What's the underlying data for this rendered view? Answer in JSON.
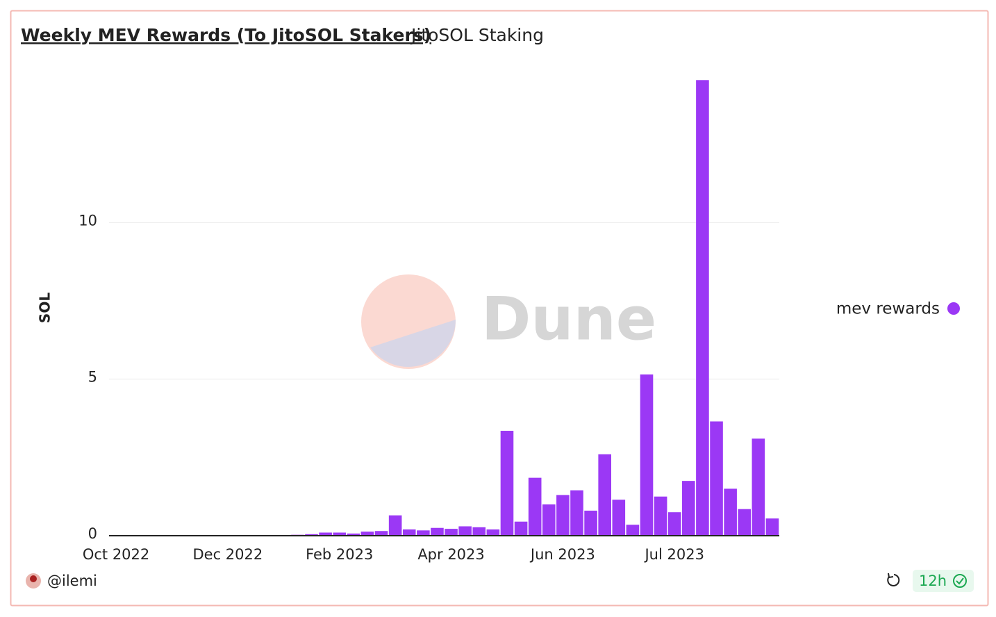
{
  "chart_data": {
    "type": "bar",
    "title": "Weekly MEV Rewards (To JitoSOL Stakers)",
    "subtitle": "JitoSOL Staking",
    "y_label": "SOL",
    "watermark": "Dune",
    "categories": [
      "Oct 2022",
      null,
      null,
      null,
      null,
      null,
      null,
      null,
      "Dec 2022",
      null,
      null,
      null,
      null,
      null,
      null,
      null,
      "Feb 2023",
      null,
      null,
      null,
      null,
      null,
      null,
      null,
      "Apr 2023",
      null,
      null,
      null,
      null,
      null,
      null,
      null,
      "Jun 2023",
      null,
      null,
      null,
      null,
      null,
      null,
      null,
      "Jul 2023",
      null,
      null,
      null,
      null,
      null,
      null,
      null
    ],
    "series": [
      {
        "name": "mev rewards",
        "color": "#9b38f5",
        "values": [
          0,
          0,
          0,
          0,
          0,
          0,
          0,
          0,
          0,
          0,
          0,
          0,
          0,
          0.03,
          0.05,
          0.1,
          0.1,
          0.07,
          0.13,
          0.15,
          0.65,
          0.2,
          0.17,
          0.25,
          0.22,
          0.3,
          0.27,
          0.2,
          3.35,
          0.45,
          1.85,
          1.0,
          1.3,
          1.45,
          0.8,
          2.6,
          1.15,
          0.35,
          5.15,
          1.25,
          0.75,
          1.75,
          14.55,
          3.65,
          1.5,
          0.85,
          3.1,
          0.55
        ]
      }
    ],
    "ylim": [
      0,
      14.8
    ],
    "yticks": [
      0,
      5,
      10
    ],
    "grid": true,
    "legend": "right"
  },
  "author": "@ilemi",
  "refresh": "12h"
}
